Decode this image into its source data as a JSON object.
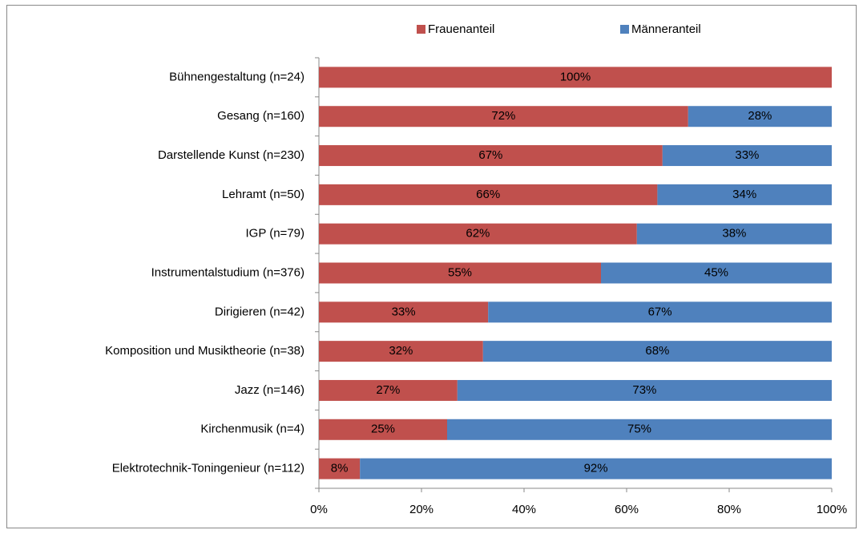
{
  "chart_data": {
    "type": "stacked-barh",
    "categories": [
      "Bühnengestaltung (n=24)",
      "Gesang (n=160)",
      "Darstellende Kunst (n=230)",
      "Lehramt (n=50)",
      "IGP (n=79)",
      "Instrumentalstudium (n=376)",
      "Dirigieren (n=42)",
      "Komposition und Musiktheorie (n=38)",
      "Jazz (n=146)",
      "Kirchenmusik (n=4)",
      "Elektrotechnik-Toningenieur (n=112)"
    ],
    "series": [
      {
        "name": "Frauenanteil",
        "color": "#c0504d",
        "values": [
          100,
          72,
          67,
          66,
          62,
          55,
          33,
          32,
          27,
          25,
          8
        ],
        "value_labels": [
          "100%",
          "72%",
          "67%",
          "66%",
          "62%",
          "55%",
          "33%",
          "32%",
          "27%",
          "25%",
          "8%"
        ]
      },
      {
        "name": "Männeranteil",
        "color": "#4f81bd",
        "values": [
          0,
          28,
          33,
          34,
          38,
          45,
          67,
          68,
          73,
          75,
          92
        ],
        "value_labels": [
          null,
          "28%",
          "33%",
          "34%",
          "38%",
          "45%",
          "67%",
          "68%",
          "73%",
          "75%",
          "92%"
        ]
      }
    ],
    "xlim": [
      0,
      100
    ],
    "xticks": [
      {
        "value": 0,
        "label": "0%"
      },
      {
        "value": 20,
        "label": "20%"
      },
      {
        "value": 40,
        "label": "40%"
      },
      {
        "value": 60,
        "label": "60%"
      },
      {
        "value": 80,
        "label": "80%"
      },
      {
        "value": 100,
        "label": "100%"
      }
    ],
    "legend": "top"
  }
}
